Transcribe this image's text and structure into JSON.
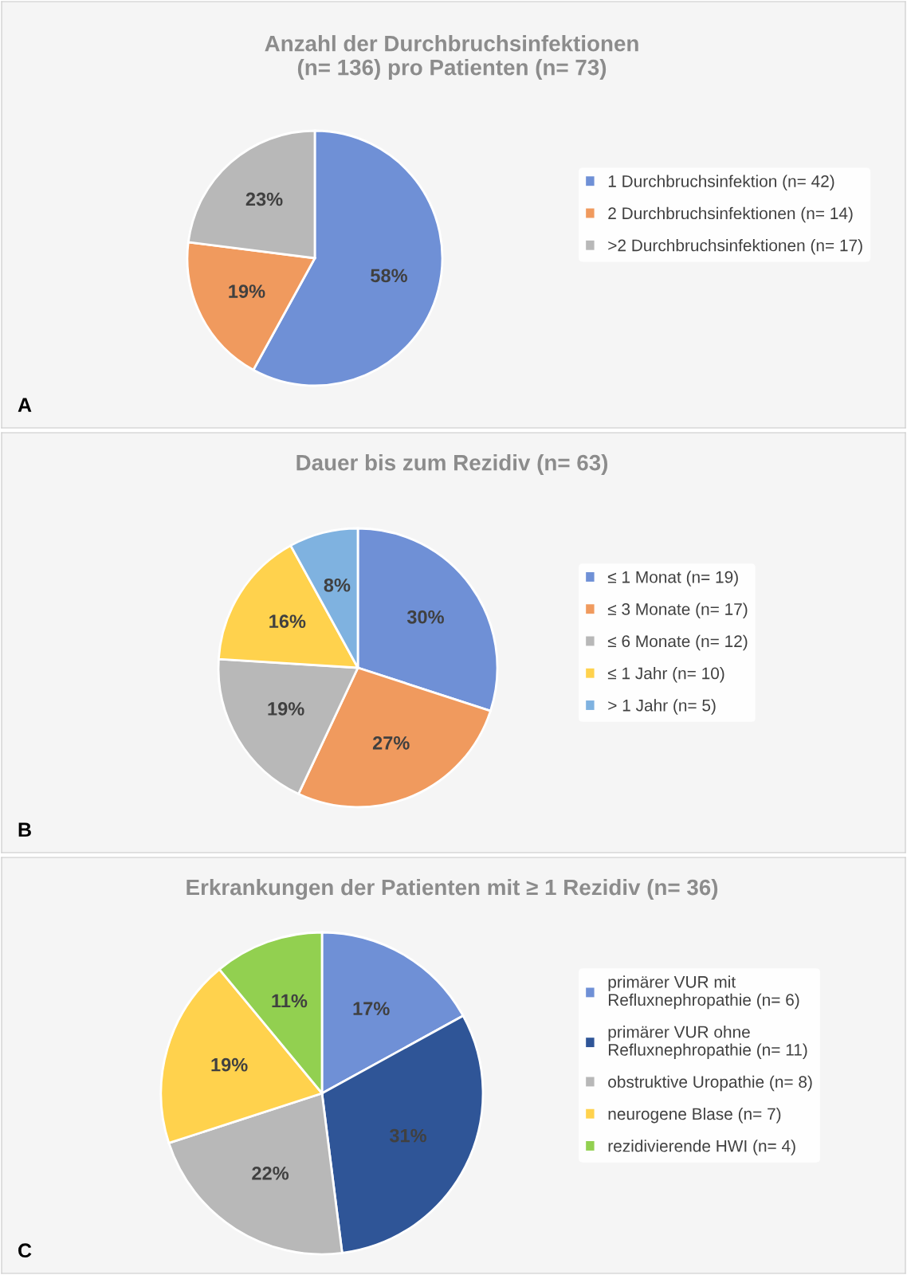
{
  "chart_data": [
    {
      "type": "pie",
      "title": "Anzahl der Durchbruchsinfektionen\n(n= 136) pro Patienten (n= 73)",
      "categories": [
        "1 Durchbruchsinfektion (n= 42)",
        "2 Durchbruchsinfektionen (n= 14)",
        ">2 Durchbruchsinfektionen (n= 17)"
      ],
      "values": [
        58,
        19,
        23
      ],
      "value_labels": [
        "58%",
        "19%",
        "23%"
      ],
      "colors": [
        "#6f90d6",
        "#f09a5e",
        "#b8b8b8"
      ],
      "legend": "right",
      "annotations": [
        "A"
      ]
    },
    {
      "type": "pie",
      "title": "Dauer bis zum Rezidiv (n= 63)",
      "categories": [
        "≤ 1 Monat (n= 19)",
        "≤ 3 Monate (n= 17)",
        "≤ 6 Monate (n= 12)",
        "≤ 1 Jahr (n= 10)",
        "> 1 Jahr (n= 5)"
      ],
      "values": [
        30,
        27,
        19,
        16,
        8
      ],
      "value_labels": [
        "30%",
        "27%",
        "19%",
        "16%",
        "8%"
      ],
      "colors": [
        "#6f90d6",
        "#f09a5e",
        "#b8b8b8",
        "#ffd24d",
        "#7fb2e0"
      ],
      "legend": "right",
      "annotations": [
        "B"
      ]
    },
    {
      "type": "pie",
      "title": "Erkrankungen der Patienten mit ≥ 1 Rezidiv (n= 36)",
      "categories": [
        "primärer VUR mit\nRefluxnephropathie (n= 6)",
        "primärer VUR ohne\nRefluxnephropathie (n= 11)",
        "obstruktive Uropathie (n= 8)",
        "neurogene Blase (n= 7)",
        "rezidivierende HWI (n= 4)"
      ],
      "values": [
        17,
        31,
        22,
        19,
        11
      ],
      "value_labels": [
        "17%",
        "31%",
        "22%",
        "19%",
        "11%"
      ],
      "colors": [
        "#6f90d6",
        "#2f5597",
        "#b8b8b8",
        "#ffd24d",
        "#92d050"
      ],
      "legend": "right",
      "annotations": [
        "C"
      ]
    }
  ]
}
